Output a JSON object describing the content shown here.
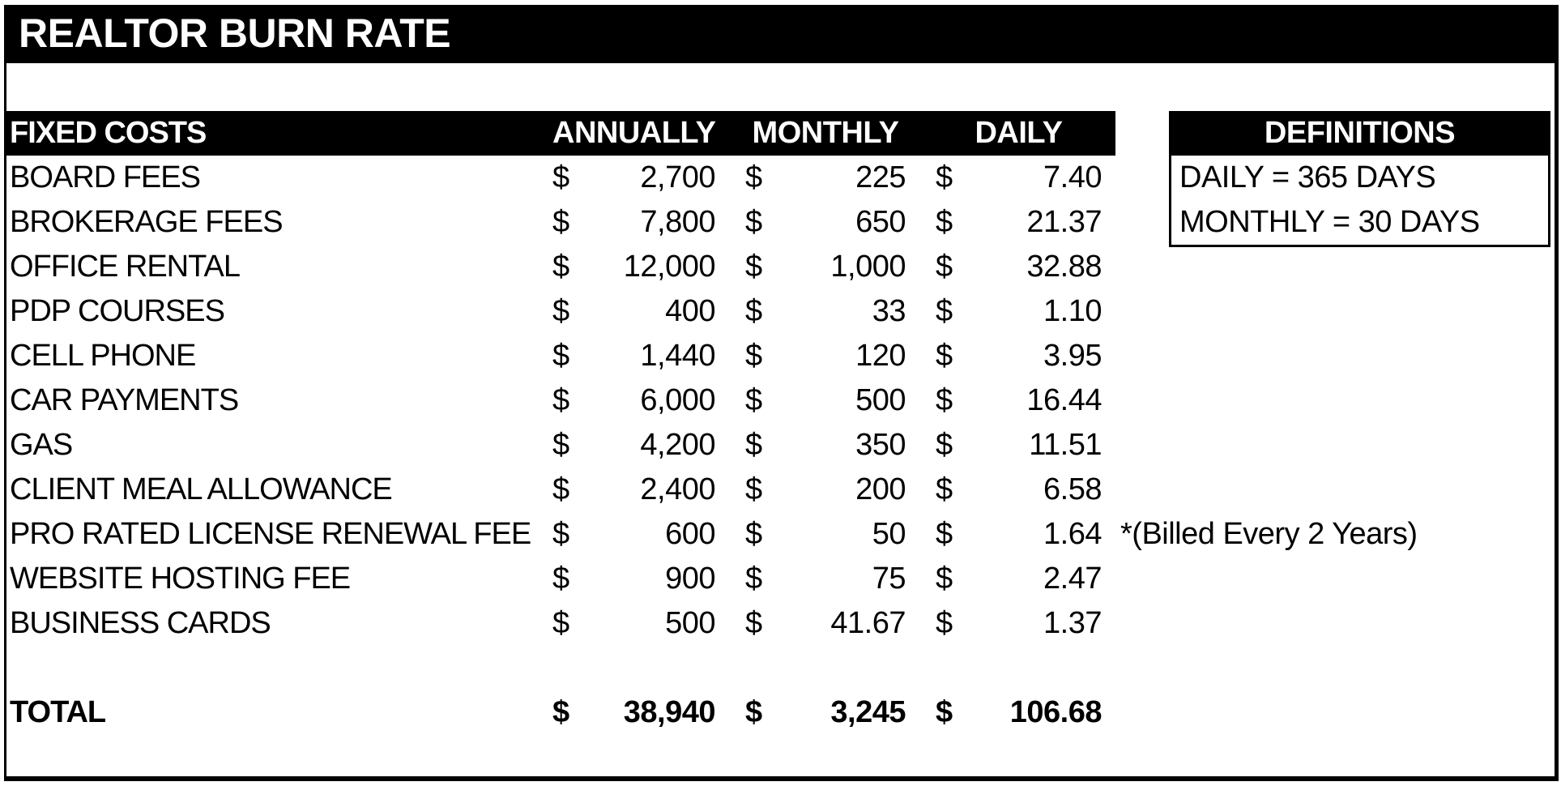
{
  "title": "REALTOR BURN RATE",
  "table": {
    "currency_symbol": "$",
    "header": {
      "label": "FIXED COSTS",
      "annually": "ANNUALLY",
      "monthly": "MONTHLY",
      "daily": "DAILY"
    },
    "rows": [
      {
        "label": "BOARD FEES",
        "annual": "2,700",
        "monthly": "225",
        "daily": "7.40"
      },
      {
        "label": "BROKERAGE FEES",
        "annual": "7,800",
        "monthly": "650",
        "daily": "21.37"
      },
      {
        "label": "OFFICE RENTAL",
        "annual": "12,000",
        "monthly": "1,000",
        "daily": "32.88"
      },
      {
        "label": "PDP COURSES",
        "annual": "400",
        "monthly": "33",
        "daily": "1.10"
      },
      {
        "label": "CELL PHONE",
        "annual": "1,440",
        "monthly": "120",
        "daily": "3.95"
      },
      {
        "label": "CAR PAYMENTS",
        "annual": "6,000",
        "monthly": "500",
        "daily": "16.44"
      },
      {
        "label": "GAS",
        "annual": "4,200",
        "monthly": "350",
        "daily": "11.51"
      },
      {
        "label": "CLIENT MEAL ALLOWANCE",
        "annual": "2,400",
        "monthly": "200",
        "daily": "6.58"
      },
      {
        "label": "PRO RATED LICENSE RENEWAL FEE",
        "annual": "600",
        "monthly": "50",
        "daily": "1.64"
      },
      {
        "label": "WEBSITE HOSTING FEE",
        "annual": "900",
        "monthly": "75",
        "daily": "2.47"
      },
      {
        "label": "BUSINESS CARDS",
        "annual": "500",
        "monthly": "41.67",
        "daily": "1.37"
      }
    ],
    "total": {
      "label": "TOTAL",
      "annual": "38,940",
      "monthly": "3,245",
      "daily": "106.68"
    }
  },
  "note": "*(Billed Every 2 Years)",
  "definitions": {
    "title": "DEFINITIONS",
    "items": [
      "DAILY = 365 DAYS",
      "MONTHLY = 30 DAYS"
    ]
  },
  "colors": {
    "bar_bg": "#000000",
    "bar_text": "#ffffff",
    "text": "#000000",
    "background": "#ffffff"
  }
}
